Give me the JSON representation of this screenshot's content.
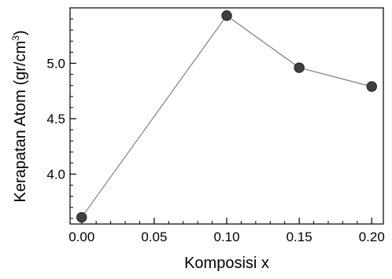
{
  "chart_data": {
    "type": "line",
    "title": "",
    "xlabel": "Komposisi x",
    "ylabel_main": "Kerapatan Atom (gr/cm",
    "ylabel_sup": "3",
    "ylabel_close": ")",
    "x": [
      0.0,
      0.1,
      0.15,
      0.2
    ],
    "series": [
      {
        "values": [
          3.61,
          5.43,
          4.96,
          4.79
        ]
      }
    ],
    "xlim": [
      -0.008,
      0.208
    ],
    "ylim": [
      3.55,
      5.5
    ],
    "xticks": [
      0.0,
      0.05,
      0.1,
      0.15,
      0.2
    ],
    "xtick_labels": [
      "0.00",
      "0.05",
      "0.10",
      "0.15",
      "0.20"
    ],
    "yticks": [
      4.0,
      4.5,
      5.0
    ],
    "ytick_labels": [
      "4.0",
      "4.5",
      "5.0"
    ],
    "grid": false,
    "legend": "none",
    "marker": "circle",
    "line_color": "#808080",
    "marker_color": "#404040"
  }
}
